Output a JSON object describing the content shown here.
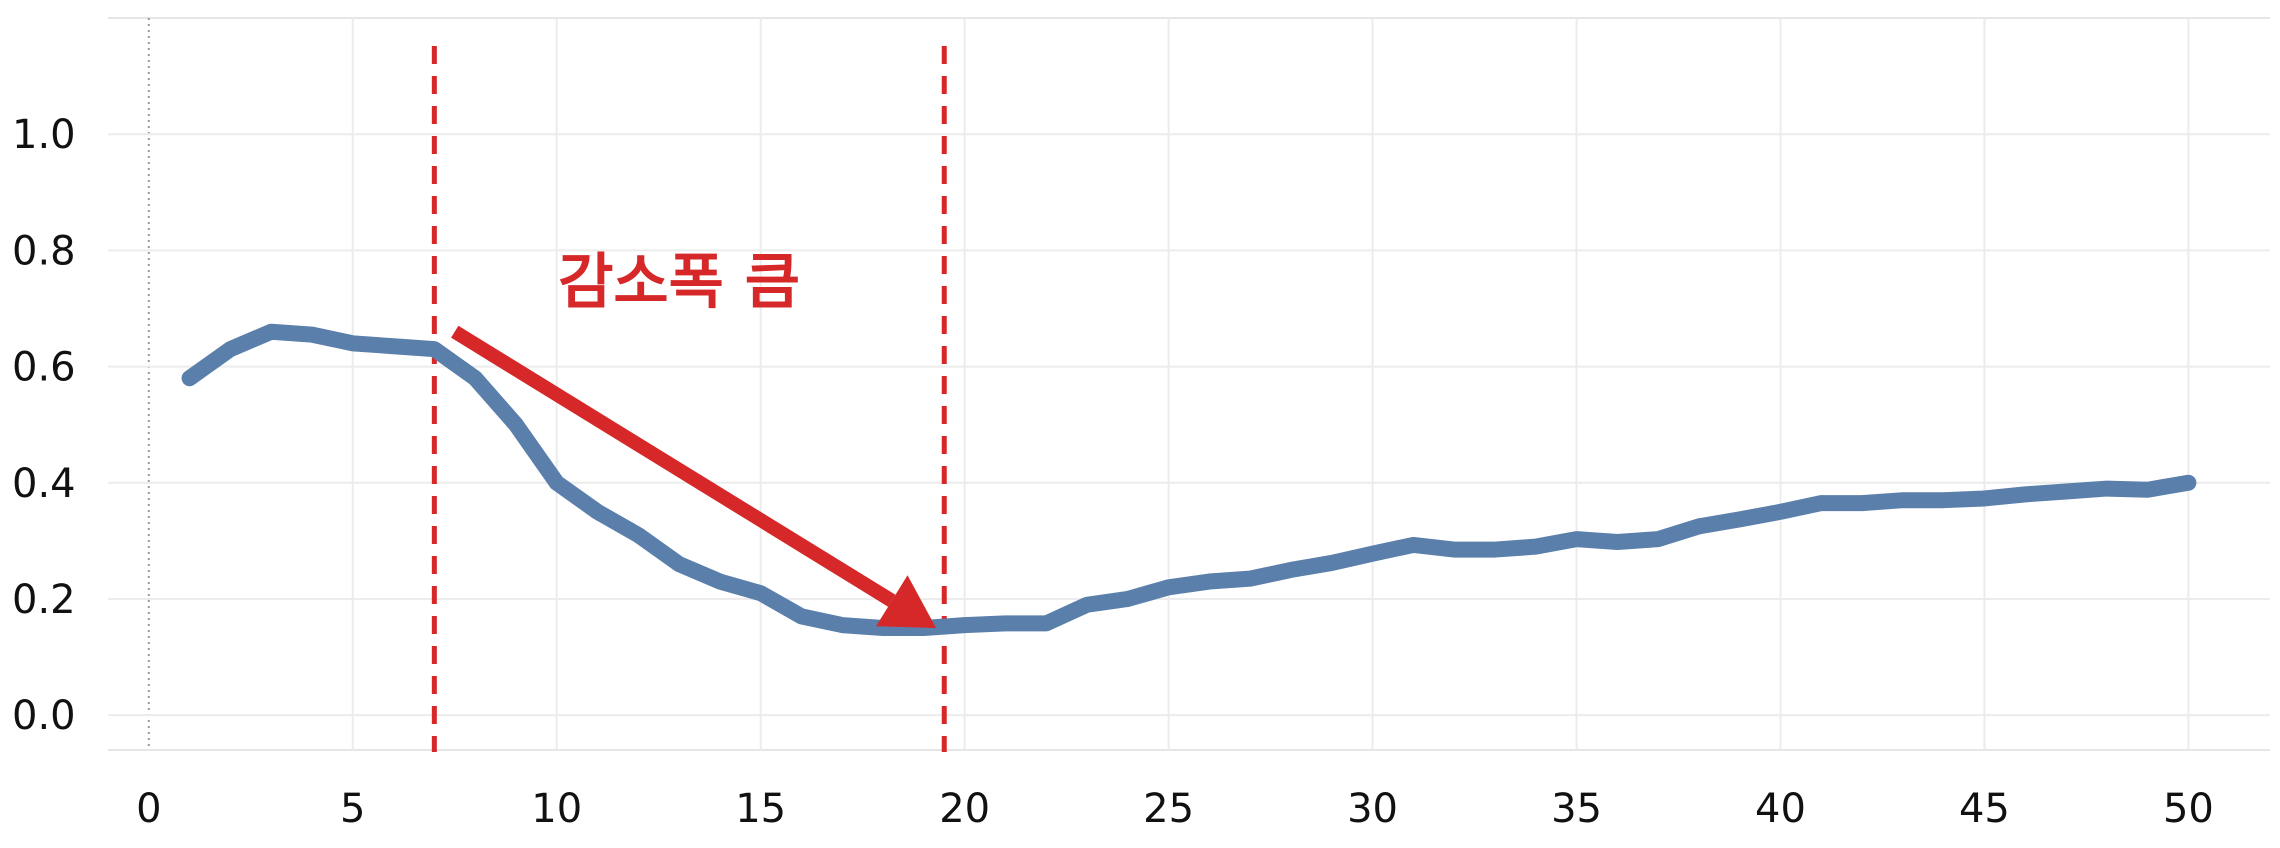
{
  "chart_data": {
    "type": "line",
    "title": "",
    "xlabel": "",
    "ylabel": "",
    "xlim": [
      -1,
      52
    ],
    "ylim": [
      -0.06,
      1.2
    ],
    "x_ticks": [
      0,
      5,
      10,
      15,
      20,
      25,
      30,
      35,
      40,
      45,
      50
    ],
    "x_tick_labels": [
      "0",
      "5",
      "10",
      "15",
      "20",
      "25",
      "30",
      "35",
      "40",
      "45",
      "50"
    ],
    "y_ticks": [
      0.0,
      0.2,
      0.4,
      0.6,
      0.8,
      1.0
    ],
    "y_tick_labels": [
      "0.0",
      "0.2",
      "0.4",
      "0.6",
      "0.8",
      "1.0"
    ],
    "grid": true,
    "series": [
      {
        "color": "#5a7fab",
        "x": [
          1,
          2,
          3,
          4,
          5,
          6,
          7,
          8,
          9,
          10,
          11,
          12,
          13,
          14,
          15,
          16,
          17,
          18,
          19,
          20,
          21,
          22,
          23,
          24,
          25,
          26,
          27,
          28,
          29,
          30,
          31,
          32,
          33,
          34,
          35,
          36,
          37,
          38,
          39,
          40,
          41,
          42,
          43,
          44,
          45,
          46,
          47,
          48,
          49,
          50
        ],
        "values": [
          0.58,
          0.63,
          0.66,
          0.655,
          0.64,
          0.635,
          0.63,
          0.58,
          0.5,
          0.4,
          0.35,
          0.31,
          0.26,
          0.23,
          0.21,
          0.17,
          0.155,
          0.15,
          0.15,
          0.155,
          0.158,
          0.158,
          0.19,
          0.2,
          0.22,
          0.23,
          0.235,
          0.25,
          0.262,
          0.278,
          0.293,
          0.285,
          0.285,
          0.29,
          0.303,
          0.298,
          0.303,
          0.325,
          0.337,
          0.35,
          0.365,
          0.365,
          0.37,
          0.37,
          0.373,
          0.38,
          0.385,
          0.39,
          0.388,
          0.4
        ]
      }
    ],
    "annotations": {
      "vlines": [
        7,
        19.5
      ],
      "vline_color": "#d62828",
      "arrow": {
        "from": [
          7.5,
          0.66
        ],
        "to": [
          19.3,
          0.15
        ],
        "color": "#d62828"
      },
      "text": {
        "label": "감소폭 큼",
        "x": 13,
        "y": 0.8,
        "color": "#d62828"
      }
    }
  }
}
